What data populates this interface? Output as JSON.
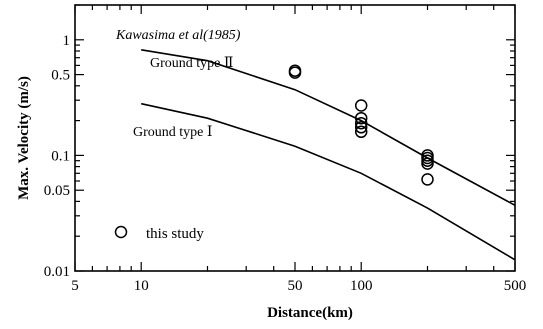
{
  "chart_data": {
    "type": "scatter",
    "title": "",
    "xlabel": "Distance(km)",
    "ylabel": "Max. Velocity (m/s)",
    "x_scale": "log",
    "y_scale": "log",
    "xlim": [
      5,
      500
    ],
    "ylim": [
      0.01,
      2
    ],
    "x_ticks": [
      {
        "value": 5,
        "label": "5"
      },
      {
        "value": 10,
        "label": "10"
      },
      {
        "value": 50,
        "label": "50"
      },
      {
        "value": 100,
        "label": "100"
      },
      {
        "value": 500,
        "label": "500"
      }
    ],
    "y_ticks": [
      {
        "value": 0.01,
        "label": "0.01"
      },
      {
        "value": 0.05,
        "label": "0.05"
      },
      {
        "value": 0.1,
        "label": "0.1"
      },
      {
        "value": 0.5,
        "label": "0.5"
      },
      {
        "value": 1,
        "label": "1"
      }
    ],
    "grid": false,
    "series": [
      {
        "name": "Ground type Ⅱ",
        "kind": "line",
        "color": "#000000",
        "points": [
          [
            10,
            0.82
          ],
          [
            20,
            0.66
          ],
          [
            50,
            0.37
          ],
          [
            100,
            0.2
          ],
          [
            200,
            0.095
          ],
          [
            500,
            0.037
          ]
        ]
      },
      {
        "name": "Ground type Ⅰ",
        "kind": "line",
        "color": "#000000",
        "points": [
          [
            10,
            0.28
          ],
          [
            20,
            0.21
          ],
          [
            50,
            0.12
          ],
          [
            100,
            0.07
          ],
          [
            200,
            0.035
          ],
          [
            500,
            0.0125
          ]
        ]
      },
      {
        "name": "this study",
        "kind": "scatter",
        "marker": "open-circle",
        "color": "#000000",
        "points": [
          [
            50,
            0.52
          ],
          [
            50,
            0.54
          ],
          [
            100,
            0.27
          ],
          [
            100,
            0.21
          ],
          [
            100,
            0.19
          ],
          [
            100,
            0.175
          ],
          [
            100,
            0.16
          ],
          [
            200,
            0.1
          ],
          [
            200,
            0.095
          ],
          [
            200,
            0.09
          ],
          [
            200,
            0.085
          ],
          [
            200,
            0.062
          ]
        ]
      }
    ],
    "annotations": {
      "source": "Kawasima et al(1985)",
      "ground2_label": "Ground type Ⅱ",
      "ground1_label": "Ground type Ⅰ",
      "legend_label": "this study"
    },
    "legend_position": "bottom-left"
  }
}
